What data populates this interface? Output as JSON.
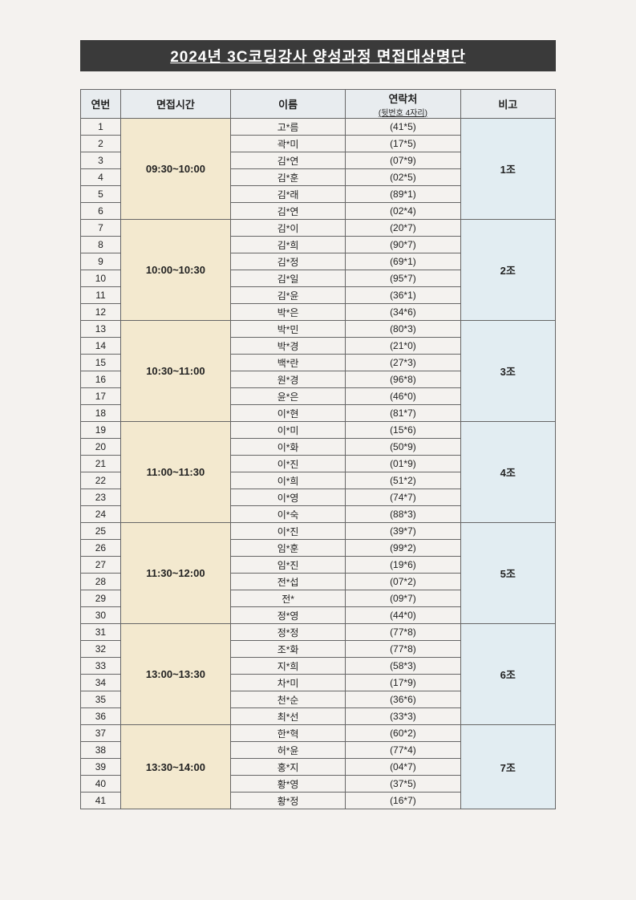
{
  "title": "2024년 3C코딩강사 양성과정 면접대상명단",
  "headers": {
    "num": "연번",
    "time": "면접시간",
    "name": "이름",
    "phone": "연락처",
    "phone_sub": "(뒷번호 4자리)",
    "group": "비고"
  },
  "groups": [
    {
      "time": "09:30~10:00",
      "label": "1조",
      "rows": [
        {
          "n": "1",
          "name": "고*름",
          "ph": "(41*5)"
        },
        {
          "n": "2",
          "name": "곽*미",
          "ph": "(17*5)"
        },
        {
          "n": "3",
          "name": "김*연",
          "ph": "(07*9)"
        },
        {
          "n": "4",
          "name": "김*훈",
          "ph": "(02*5)"
        },
        {
          "n": "5",
          "name": "김*래",
          "ph": "(89*1)"
        },
        {
          "n": "6",
          "name": "김*연",
          "ph": "(02*4)"
        }
      ]
    },
    {
      "time": "10:00~10:30",
      "label": "2조",
      "rows": [
        {
          "n": "7",
          "name": "김*이",
          "ph": "(20*7)"
        },
        {
          "n": "8",
          "name": "김*희",
          "ph": "(90*7)"
        },
        {
          "n": "9",
          "name": "김*정",
          "ph": "(69*1)"
        },
        {
          "n": "10",
          "name": "김*일",
          "ph": "(95*7)"
        },
        {
          "n": "11",
          "name": "김*윤",
          "ph": "(36*1)"
        },
        {
          "n": "12",
          "name": "박*은",
          "ph": "(34*6)"
        }
      ]
    },
    {
      "time": "10:30~11:00",
      "label": "3조",
      "rows": [
        {
          "n": "13",
          "name": "박*민",
          "ph": "(80*3)"
        },
        {
          "n": "14",
          "name": "박*경",
          "ph": "(21*0)"
        },
        {
          "n": "15",
          "name": "백*란",
          "ph": "(27*3)"
        },
        {
          "n": "16",
          "name": "원*경",
          "ph": "(96*8)"
        },
        {
          "n": "17",
          "name": "윤*은",
          "ph": "(46*0)"
        },
        {
          "n": "18",
          "name": "이*현",
          "ph": "(81*7)"
        }
      ]
    },
    {
      "time": "11:00~11:30",
      "label": "4조",
      "rows": [
        {
          "n": "19",
          "name": "이*미",
          "ph": "(15*6)"
        },
        {
          "n": "20",
          "name": "이*화",
          "ph": "(50*9)"
        },
        {
          "n": "21",
          "name": "이*진",
          "ph": "(01*9)"
        },
        {
          "n": "22",
          "name": "이*희",
          "ph": "(51*2)"
        },
        {
          "n": "23",
          "name": "이*영",
          "ph": "(74*7)"
        },
        {
          "n": "24",
          "name": "이*숙",
          "ph": "(88*3)"
        }
      ]
    },
    {
      "time": "11:30~12:00",
      "label": "5조",
      "rows": [
        {
          "n": "25",
          "name": "이*진",
          "ph": "(39*7)"
        },
        {
          "n": "26",
          "name": "임*훈",
          "ph": "(99*2)"
        },
        {
          "n": "27",
          "name": "임*진",
          "ph": "(19*6)"
        },
        {
          "n": "28",
          "name": "전*섭",
          "ph": "(07*2)"
        },
        {
          "n": "29",
          "name": "전*",
          "ph": "(09*7)"
        },
        {
          "n": "30",
          "name": "정*영",
          "ph": "(44*0)"
        }
      ]
    },
    {
      "time": "13:00~13:30",
      "label": "6조",
      "rows": [
        {
          "n": "31",
          "name": "정*정",
          "ph": "(77*8)"
        },
        {
          "n": "32",
          "name": "조*화",
          "ph": "(77*8)"
        },
        {
          "n": "33",
          "name": "지*희",
          "ph": "(58*3)"
        },
        {
          "n": "34",
          "name": "차*미",
          "ph": "(17*9)"
        },
        {
          "n": "35",
          "name": "천*순",
          "ph": "(36*6)"
        },
        {
          "n": "36",
          "name": "최*선",
          "ph": "(33*3)"
        }
      ]
    },
    {
      "time": "13:30~14:00",
      "label": "7조",
      "rows": [
        {
          "n": "37",
          "name": "한*혁",
          "ph": "(60*2)"
        },
        {
          "n": "38",
          "name": "허*윤",
          "ph": "(77*4)"
        },
        {
          "n": "39",
          "name": "홍*지",
          "ph": "(04*7)"
        },
        {
          "n": "40",
          "name": "황*영",
          "ph": "(37*5)"
        },
        {
          "n": "41",
          "name": "황*정",
          "ph": "(16*7)"
        }
      ]
    }
  ]
}
